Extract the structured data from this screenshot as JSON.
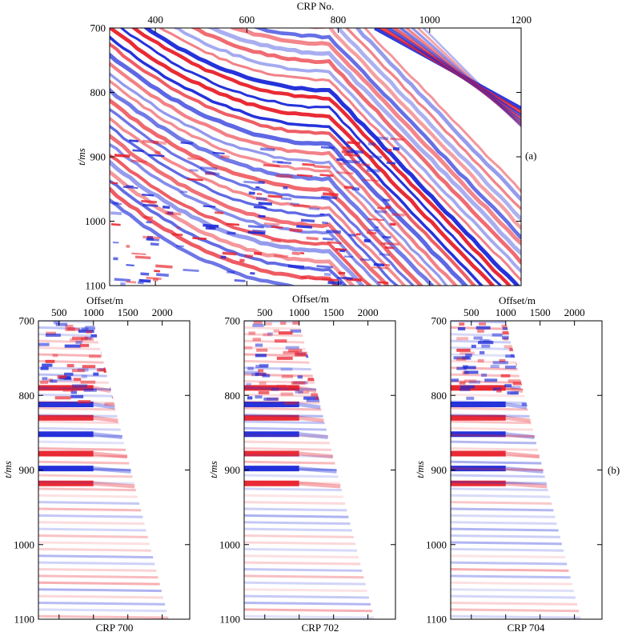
{
  "figure": {
    "panel_a_label": "(a)",
    "panel_b_label": "(b)"
  },
  "colors": {
    "positive_amplitude": "#e8202a",
    "negative_amplitude": "#1a28d8",
    "background": "#ffffff",
    "axes": "#000000"
  },
  "chart_data": [
    {
      "type": "heatmap",
      "description_kind": "seismic section (common reflection point stack)",
      "xlabel": "CRP No.",
      "ylabel": "t/ms",
      "xlim": [
        300,
        1200
      ],
      "ylim": [
        700,
        1100
      ],
      "y_inverted": true,
      "x_ticks": [
        400,
        600,
        800,
        1000,
        1200
      ],
      "y_ticks": [
        700,
        800,
        900,
        1000,
        1100
      ],
      "colormap": "red-white-blue (red positive, blue negative)",
      "panel_label": "(a)",
      "events": [
        {
          "flat_t_ms": 780,
          "dip_start_crp": 780,
          "t_at_1200_ms": 1090
        },
        {
          "flat_t_ms": 808,
          "dip_start_crp": 780,
          "t_at_1200_ms": 1115
        },
        {
          "flat_t_ms": 822,
          "dip_start_crp": 780,
          "t_at_1200_ms": 1130
        },
        {
          "flat_t_ms": 840,
          "dip_start_crp": 780,
          "t_at_1200_ms": 1150
        },
        {
          "flat_t_ms": 700,
          "dip_start_crp": 880,
          "t_at_1200_ms": 825
        }
      ]
    },
    {
      "type": "heatmap",
      "description_kind": "CRP gather",
      "title": "CRP 700",
      "xlabel": "Offset/m",
      "ylabel": "t/ms",
      "xlim": [
        200,
        2400
      ],
      "ylim": [
        700,
        1100
      ],
      "y_inverted": true,
      "x_ticks": [
        500,
        1000,
        1500,
        2000
      ],
      "y_ticks": [
        700,
        800,
        900,
        1000,
        1100
      ],
      "mute_edge": [
        [
          1000,
          700
        ],
        [
          2100,
          1100
        ]
      ],
      "strong_events_t_ms": [
        790,
        812,
        830,
        852,
        878,
        898,
        918
      ]
    },
    {
      "type": "heatmap",
      "description_kind": "CRP gather",
      "title": "CRP 702",
      "xlabel": "Offset/m",
      "ylabel": "t/ms",
      "xlim": [
        200,
        2400
      ],
      "ylim": [
        700,
        1100
      ],
      "y_inverted": true,
      "x_ticks": [
        500,
        1000,
        1500,
        2000
      ],
      "y_ticks": [
        700,
        800,
        900,
        1000,
        1100
      ],
      "mute_edge": [
        [
          1000,
          700
        ],
        [
          2100,
          1100
        ]
      ],
      "strong_events_t_ms": [
        790,
        812,
        830,
        852,
        878,
        898,
        918
      ]
    },
    {
      "type": "heatmap",
      "description_kind": "CRP gather",
      "title": "CRP 704",
      "xlabel": "Offset/m",
      "ylabel": "t/ms",
      "xlim": [
        200,
        2400
      ],
      "ylim": [
        700,
        1100
      ],
      "y_inverted": true,
      "x_ticks": [
        500,
        1000,
        1500,
        2000
      ],
      "y_ticks": [
        700,
        800,
        900,
        1000,
        1100
      ],
      "mute_edge": [
        [
          1000,
          700
        ],
        [
          2100,
          1100
        ]
      ],
      "strong_events_t_ms": [
        790,
        812,
        830,
        852,
        878,
        898,
        918
      ]
    }
  ]
}
